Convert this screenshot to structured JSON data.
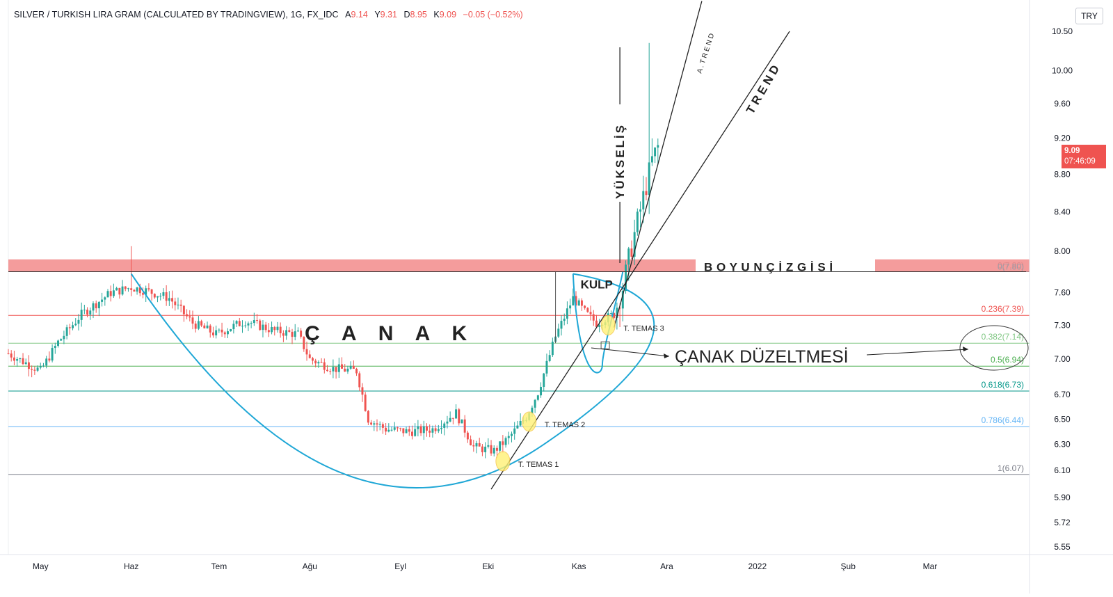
{
  "header": {
    "symbol": "SILVER / TURKISH LIRA GRAM (CALCULATED BY TRADINGVIEW), 1G, FX_IDC",
    "o_label": "A",
    "o_value": "9.14",
    "h_label": "Y",
    "h_value": "9.31",
    "l_label": "D",
    "l_value": "8.95",
    "c_label": "K",
    "c_value": "9.09",
    "change": "−0.05 (−0.52%)"
  },
  "currency_button": "TRY",
  "last_price": {
    "value": "9.09",
    "countdown": "07:46:09"
  },
  "colors": {
    "up": "#26a69a",
    "down": "#ef5350",
    "resistance_band": "#f28b8b",
    "cup_curve": "#1fa7d6",
    "fib_0236": "#ef5350",
    "fib_0382": "#81c784",
    "fib_05": "#4caf50",
    "fib_0618": "#009688",
    "fib_0786": "#64b5f6",
    "fib_1": "#787b86"
  },
  "annotations": {
    "boyun": "B O Y U N   Ç İ Z G İ S İ",
    "canak": "Ç   A   N   A   K",
    "kulp": "KULP",
    "duzeltme": "ÇANAK DÜZELTMESİ",
    "yukselis": "YÜKSELİŞ",
    "trend": "T R E N D",
    "a_trend": "A . T R E N D",
    "temas1": "T. TEMAS 1",
    "temas2": "T. TEMAS 2",
    "temas3": "T. TEMAS 3"
  },
  "chart_data": {
    "type": "candlestick",
    "y_axis": {
      "ticks": [
        10.5,
        10.0,
        9.6,
        9.2,
        8.8,
        8.4,
        8.0,
        7.6,
        7.3,
        7.0,
        6.7,
        6.5,
        6.3,
        6.1,
        5.9,
        5.72,
        5.55
      ],
      "tick_labels": [
        "10.50",
        "10.00",
        "9.60",
        "9.20",
        "8.80",
        "8.40",
        "8.00",
        "7.60",
        "7.30",
        "7.00",
        "6.70",
        "6.50",
        "6.30",
        "6.10",
        "5.90",
        "5.72",
        "5.55"
      ],
      "scale": "log"
    },
    "x_axis": {
      "labels": [
        "May",
        "Haz",
        "Tem",
        "Ağu",
        "Eyl",
        "Eki",
        "Kas",
        "Ara",
        "2022",
        "Şub",
        "Mar"
      ],
      "label_days": [
        0,
        31,
        61,
        92,
        123,
        153,
        184,
        214,
        245,
        276,
        304
      ],
      "range_days": [
        -11,
        338
      ]
    },
    "resistance_zone": [
      7.8,
      7.92
    ],
    "fibonacci": [
      {
        "level": "0",
        "price": 7.8,
        "label": "0(7.80)"
      },
      {
        "level": "0.236",
        "price": 7.39,
        "label": "0.236(7.39)"
      },
      {
        "level": "0.382",
        "price": 7.14,
        "label": "0.382(7.14)"
      },
      {
        "level": "0.5",
        "price": 6.94,
        "label": "0.5(6.94)"
      },
      {
        "level": "0.618",
        "price": 6.73,
        "label": "0.618(6.73)"
      },
      {
        "level": "0.786",
        "price": 6.44,
        "label": "0.786(6.44)"
      },
      {
        "level": "1",
        "price": 6.07,
        "label": "1(6.07)"
      }
    ],
    "anchors": [
      [
        -11,
        7.05
      ],
      [
        0,
        6.9
      ],
      [
        6,
        7.15
      ],
      [
        14,
        7.4
      ],
      [
        24,
        7.6
      ],
      [
        31,
        7.65
      ],
      [
        36,
        7.62
      ],
      [
        44,
        7.55
      ],
      [
        52,
        7.32
      ],
      [
        60,
        7.22
      ],
      [
        70,
        7.34
      ],
      [
        80,
        7.25
      ],
      [
        88,
        7.22
      ],
      [
        92,
        7.0
      ],
      [
        100,
        6.92
      ],
      [
        108,
        6.9
      ],
      [
        112,
        6.5
      ],
      [
        118,
        6.42
      ],
      [
        126,
        6.4
      ],
      [
        134,
        6.42
      ],
      [
        142,
        6.55
      ],
      [
        148,
        6.28
      ],
      [
        155,
        6.25
      ],
      [
        160,
        6.35
      ],
      [
        166,
        6.52
      ],
      [
        170,
        6.72
      ],
      [
        176,
        7.2
      ],
      [
        182,
        7.55
      ],
      [
        186,
        7.42
      ],
      [
        190,
        7.32
      ],
      [
        196,
        7.4
      ],
      [
        199,
        7.65
      ],
      [
        202,
        8.05
      ],
      [
        206,
        8.55
      ],
      [
        209,
        8.95
      ],
      [
        211,
        9.1
      ]
    ],
    "spikes": [
      {
        "day": 31,
        "high": 8.05
      },
      {
        "day": 208,
        "high": 10.35
      }
    ]
  }
}
